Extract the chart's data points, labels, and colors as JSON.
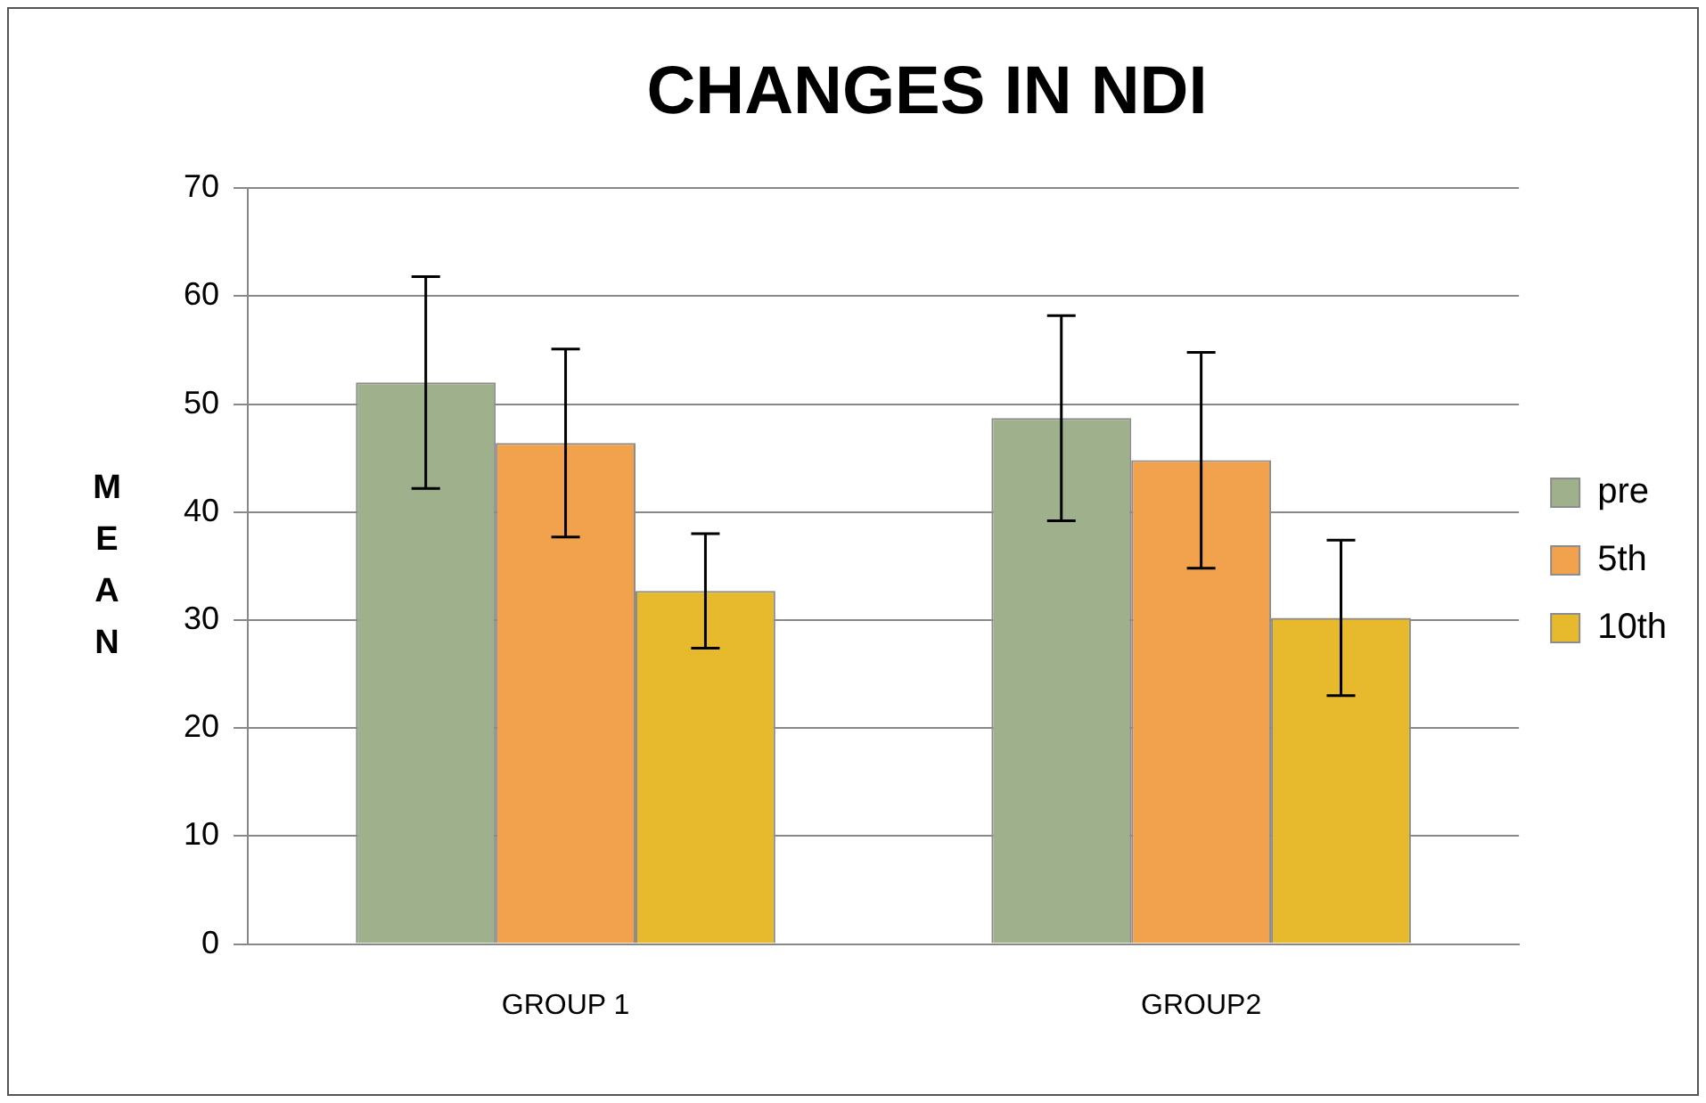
{
  "chart_data": {
    "type": "bar",
    "title": "CHANGES IN NDI",
    "ylabel": "MEAN",
    "categories": [
      "GROUP 1",
      "GROUP2"
    ],
    "series": [
      {
        "name": "pre",
        "color": "#9eb18c",
        "values": [
          52,
          48.7
        ],
        "errors": [
          9.8,
          9.5
        ]
      },
      {
        "name": "5th",
        "color": "#f2a24c",
        "values": [
          46.4,
          44.8
        ],
        "errors": [
          8.7,
          10
        ]
      },
      {
        "name": "10th",
        "color": "#e6ba2c",
        "values": [
          32.7,
          30.2
        ],
        "errors": [
          5.3,
          7.2
        ]
      }
    ],
    "ylim": [
      0,
      70
    ],
    "yticks": [
      0,
      10,
      20,
      30,
      40,
      50,
      60,
      70
    ],
    "grid": "y",
    "legend": "right"
  }
}
